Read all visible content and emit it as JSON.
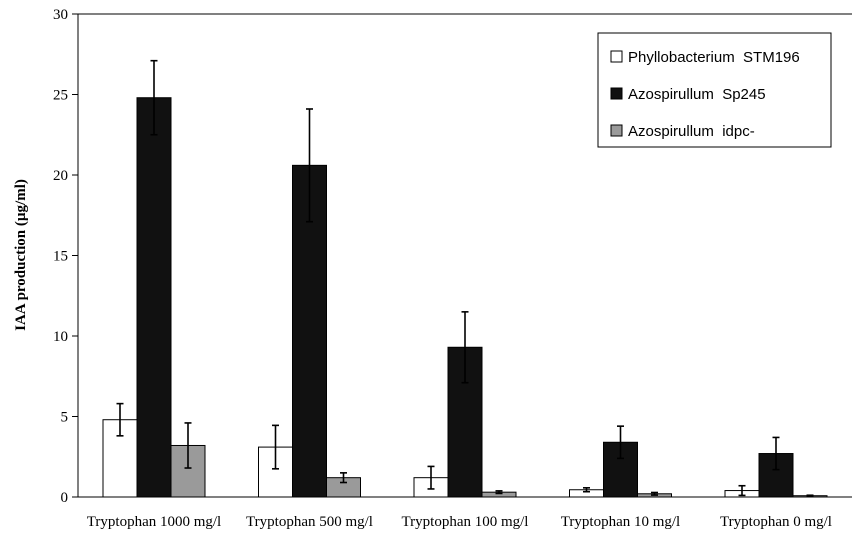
{
  "chart_data": {
    "type": "bar",
    "title": "",
    "xlabel": "",
    "ylabel": "IAA production (µg/ml)",
    "ylim": [
      0,
      30
    ],
    "yticks": [
      0,
      5,
      10,
      15,
      20,
      25,
      30
    ],
    "grid": false,
    "legend_position": "top-right",
    "categories": [
      "Tryptophan 1000 mg/l",
      "Tryptophan 500 mg/l",
      "Tryptophan 100 mg/l",
      "Tryptophan 10 mg/l",
      "Tryptophan 0 mg/l"
    ],
    "series": [
      {
        "name": "Phyllobacterium  STM196",
        "color": "#ffffff",
        "values": [
          4.8,
          3.1,
          1.2,
          0.45,
          0.4
        ],
        "errors": [
          1.0,
          1.35,
          0.7,
          0.12,
          0.3
        ]
      },
      {
        "name": "Azospirullum  Sp245",
        "color": "#111111",
        "values": [
          24.8,
          20.6,
          9.3,
          3.4,
          2.7
        ],
        "errors": [
          2.3,
          3.5,
          2.2,
          1.0,
          1.0
        ]
      },
      {
        "name": "Azospirullum  idpc-",
        "color": "#9a9a9a",
        "values": [
          3.2,
          1.2,
          0.3,
          0.2,
          0.08
        ],
        "errors": [
          1.4,
          0.3,
          0.08,
          0.08,
          0.03
        ]
      }
    ]
  }
}
